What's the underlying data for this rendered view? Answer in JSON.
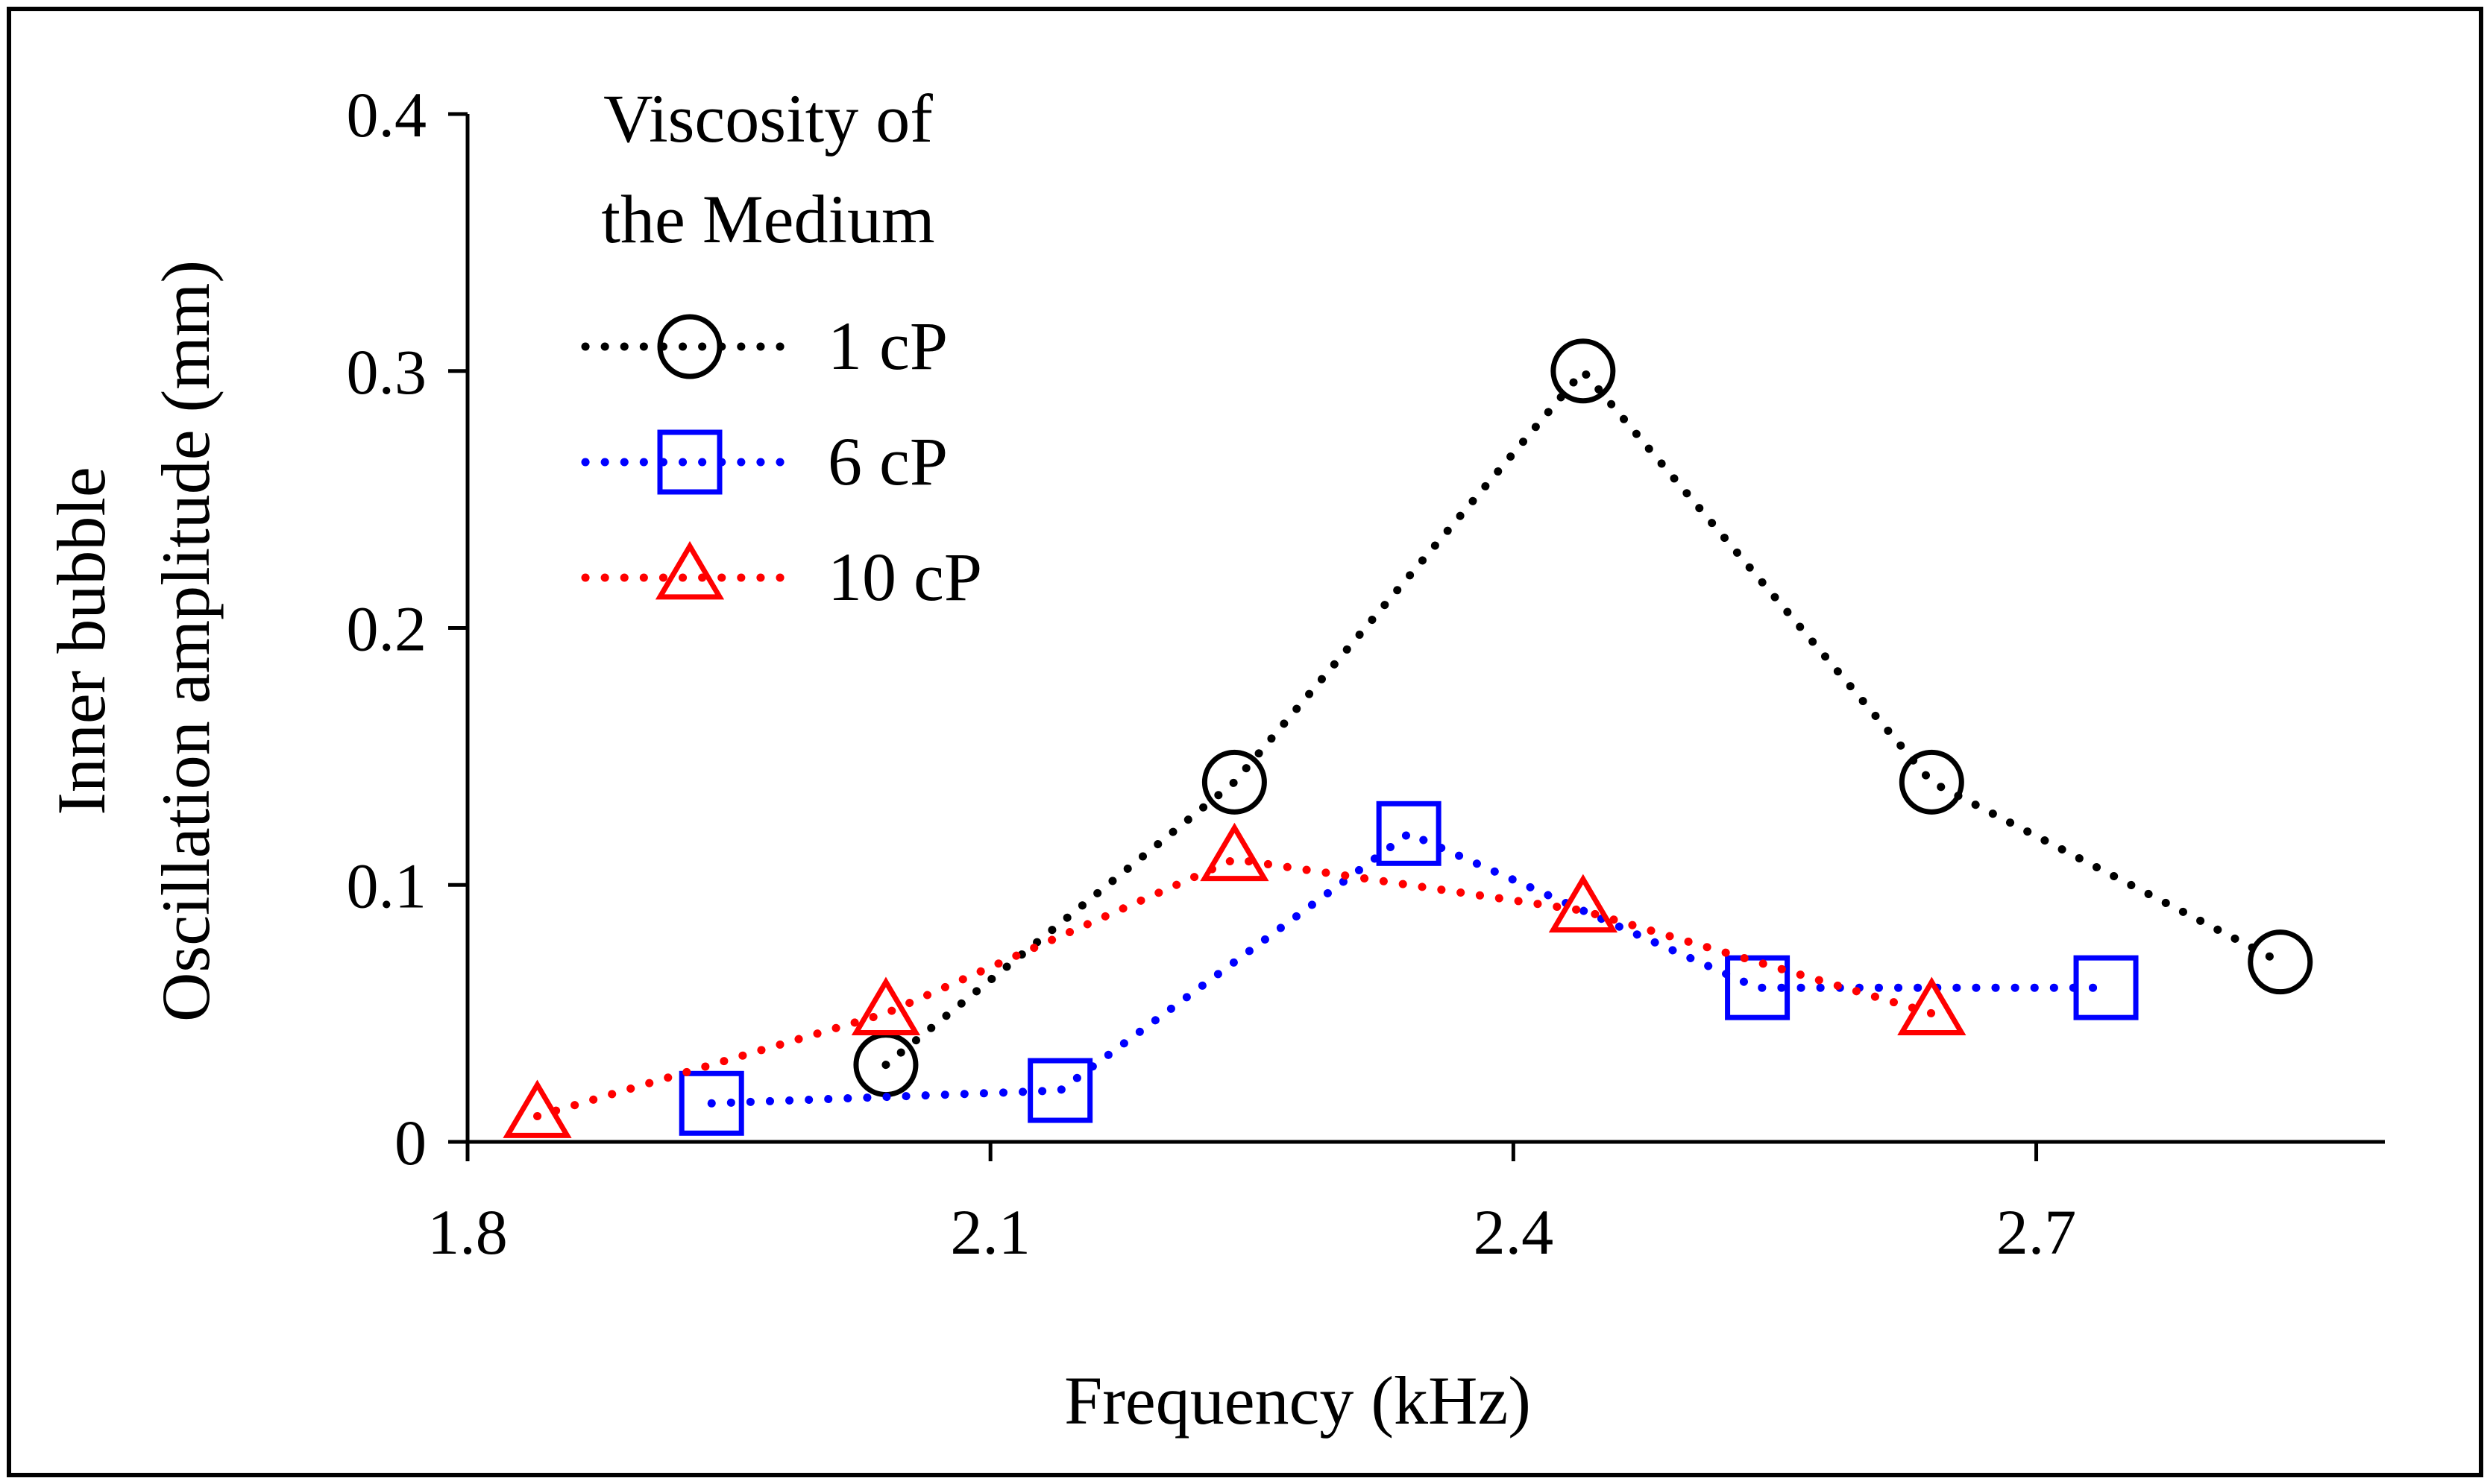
{
  "chart_data": {
    "type": "line",
    "title": "",
    "xlabel": "Frequency (kHz)",
    "ylabel_lines": [
      "Inner bubble",
      "Oscillation amplitude (mm)"
    ],
    "xlim": [
      1.8,
      2.9
    ],
    "ylim": [
      0,
      0.4
    ],
    "xticks": [
      {
        "value": 1.8,
        "label": "1.8"
      },
      {
        "value": 2.1,
        "label": "2.1"
      },
      {
        "value": 2.4,
        "label": "2.4"
      },
      {
        "value": 2.7,
        "label": "2.7"
      }
    ],
    "yticks": [
      {
        "value": 0,
        "label": "0"
      },
      {
        "value": 0.1,
        "label": "0.1"
      },
      {
        "value": 0.2,
        "label": "0.2"
      },
      {
        "value": 0.3,
        "label": "0.3"
      },
      {
        "value": 0.4,
        "label": "0.4"
      }
    ],
    "grid": false,
    "legend": {
      "title_lines": [
        "Viscosity of",
        "the Medium"
      ],
      "placement": "top-left"
    },
    "series": [
      {
        "name": "1 cP",
        "color": "#000000",
        "marker": "circle",
        "x": [
          2.04,
          2.24,
          2.44,
          2.64,
          2.84
        ],
        "y": [
          0.03,
          0.14,
          0.3,
          0.14,
          0.07
        ]
      },
      {
        "name": "6 cP",
        "color": "#0000FF",
        "marker": "square",
        "x": [
          1.94,
          2.14,
          2.34,
          2.54,
          2.74
        ],
        "y": [
          0.015,
          0.02,
          0.12,
          0.06,
          0.06
        ]
      },
      {
        "name": "10 cP",
        "color": "#FF0000",
        "marker": "triangle",
        "x": [
          1.84,
          2.04,
          2.24,
          2.44,
          2.64
        ],
        "y": [
          0.01,
          0.05,
          0.11,
          0.09,
          0.05
        ]
      }
    ]
  }
}
